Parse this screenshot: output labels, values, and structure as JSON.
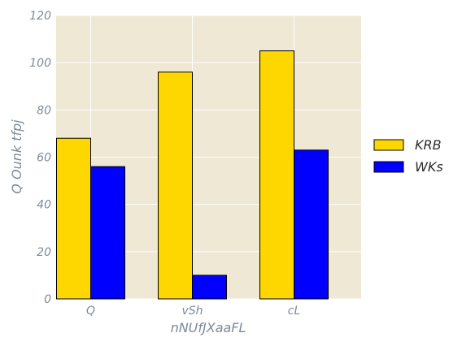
{
  "chart_data": {
    "type": "bar",
    "title": "",
    "xlabel": "nNUfJXaaFL",
    "ylabel": "Q Ounk  tfpj",
    "categories": [
      "Q",
      "vSh",
      "cL"
    ],
    "series": [
      {
        "name": "KRB",
        "values": [
          68,
          96,
          105
        ],
        "color": "#ffd700"
      },
      {
        "name": "WKs",
        "values": [
          56,
          10,
          63
        ],
        "color": "#0000ff"
      }
    ],
    "ylim": [
      0,
      120
    ],
    "yticks": [
      0,
      20,
      40,
      60,
      80,
      100,
      120
    ],
    "grid": true,
    "legend": "right",
    "plot_background": "#efe8d5",
    "grid_color": "#ffffff"
  }
}
